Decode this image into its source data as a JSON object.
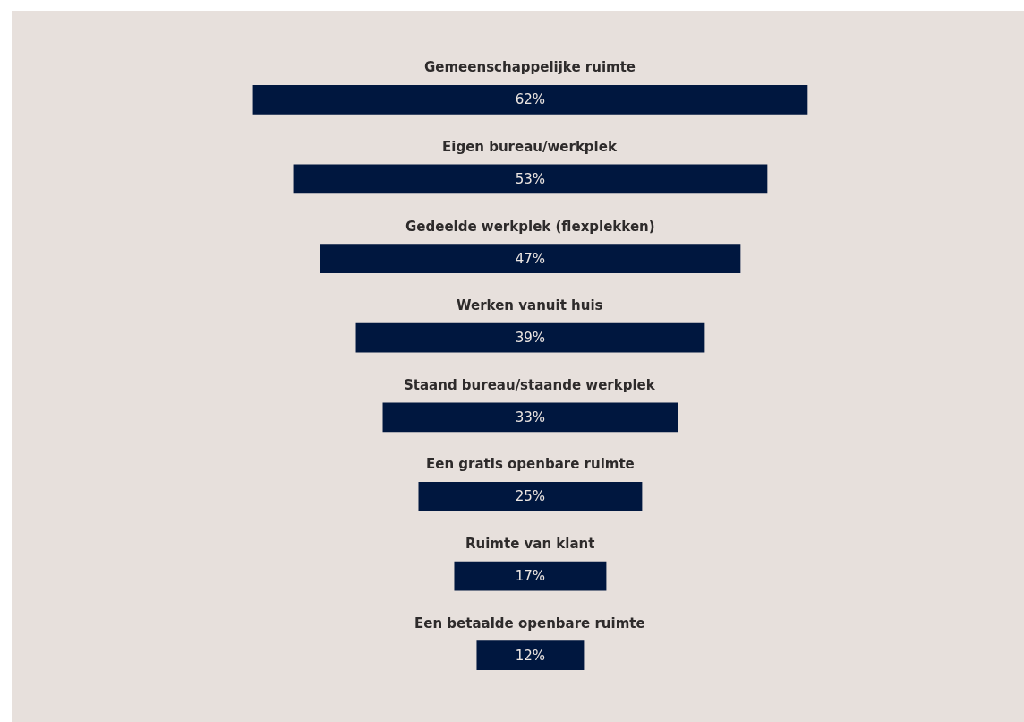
{
  "chart_data": {
    "type": "other",
    "categories": [
      "Gemeenschappelijke ruimte",
      "Eigen bureau/werkplek",
      "Gedeelde werkplek (flexplekken)",
      "Werken vanuit huis",
      "Staand bureau/staande werkplek",
      "Een gratis openbare ruimte",
      "Ruimte van klant",
      "Een betaalde openbare ruimte"
    ],
    "values": [
      62,
      53,
      47,
      39,
      33,
      25,
      17,
      12
    ],
    "value_labels": [
      "62%",
      "53%",
      "47%",
      "39%",
      "33%",
      "25%",
      "17%",
      "12%"
    ],
    "color": "#00173f"
  }
}
